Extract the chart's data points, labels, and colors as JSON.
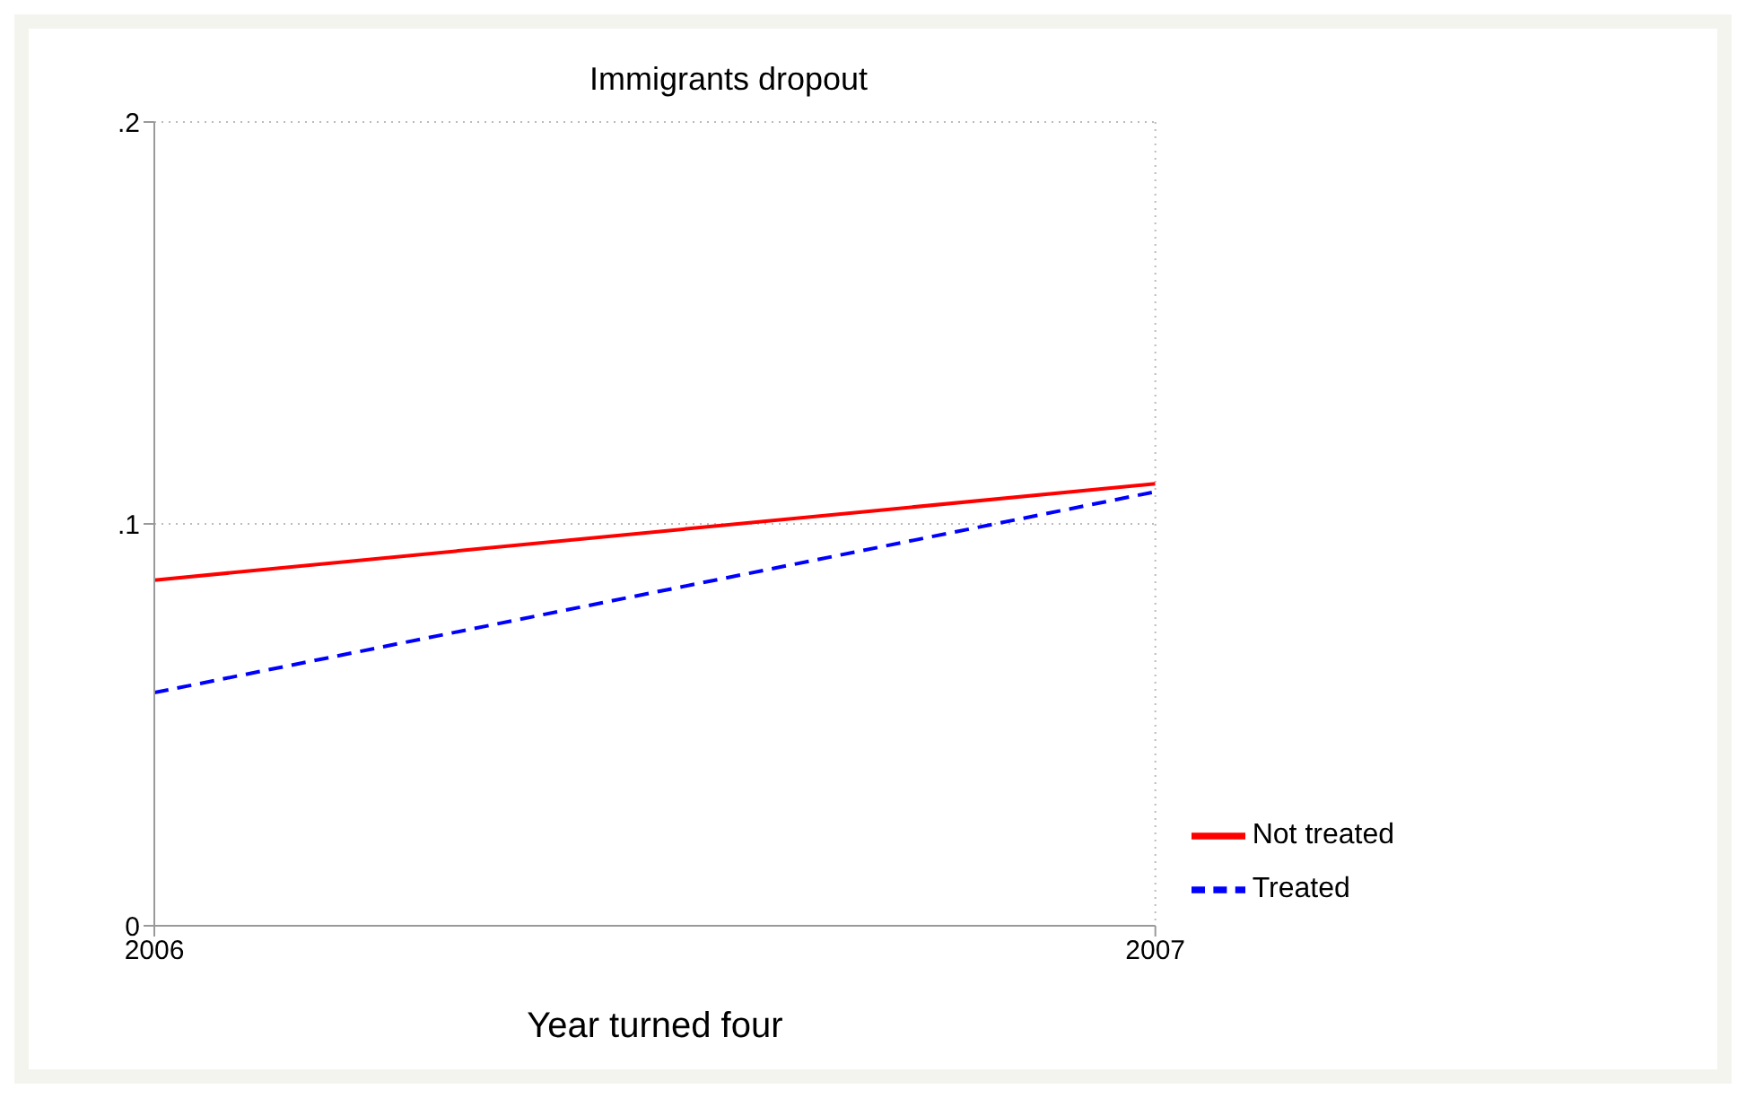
{
  "chart_data": {
    "type": "line",
    "title": "Immigrants dropout",
    "xlabel": "Year turned four",
    "x": [
      2006,
      2007
    ],
    "series": [
      {
        "name": "Treated",
        "color": "#0000ff",
        "values": [
          0.058,
          0.108
        ],
        "line_style": "dashed"
      },
      {
        "name": "Not treated",
        "color": "#ff0000",
        "values": [
          0.086,
          0.11
        ],
        "line_style": "solid"
      }
    ],
    "xlim": [
      2006,
      2007
    ],
    "xticks": [
      2006,
      2007
    ],
    "ylim": [
      0,
      0.2
    ],
    "yticks": [
      {
        "value": 0,
        "label": "0"
      },
      {
        "value": 0.1,
        "label": ".1"
      },
      {
        "value": 0.2,
        "label": ".2"
      }
    ],
    "grid": true,
    "legend": "bottom right",
    "marker": "none"
  }
}
